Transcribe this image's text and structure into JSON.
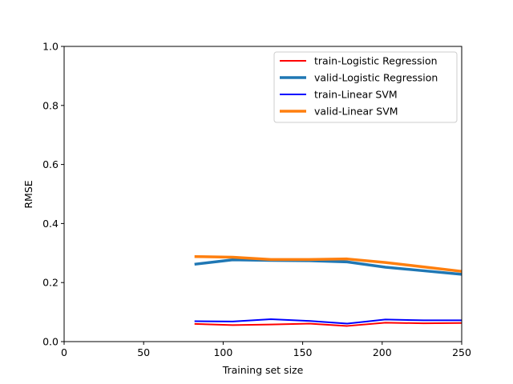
{
  "chart_data": {
    "type": "line",
    "title": "",
    "xlabel": "Training set size",
    "ylabel": "RMSE",
    "xlim": [
      0,
      250
    ],
    "ylim": [
      0,
      1.0
    ],
    "xticks": [
      0,
      50,
      100,
      150,
      200,
      250
    ],
    "yticks": [
      0.0,
      0.2,
      0.4,
      0.6,
      0.8,
      1.0
    ],
    "xtick_labels": [
      "0",
      "50",
      "100",
      "150",
      "200",
      "250"
    ],
    "ytick_labels": [
      "0.0",
      "0.2",
      "0.4",
      "0.6",
      "0.8",
      "1.0"
    ],
    "grid": false,
    "legend_position": "top-right",
    "x": [
      82,
      106,
      130,
      154,
      178,
      202,
      226,
      250
    ],
    "series": [
      {
        "name": "train-Logistic Regression",
        "color": "#ff0000",
        "width": "thin",
        "values": [
          0.06,
          0.056,
          0.058,
          0.061,
          0.053,
          0.064,
          0.062,
          0.063
        ]
      },
      {
        "name": "valid-Logistic Regression",
        "color": "#1f77b4",
        "width": "thick",
        "values": [
          0.262,
          0.277,
          0.275,
          0.274,
          0.27,
          0.252,
          0.24,
          0.228
        ]
      },
      {
        "name": "train-Linear SVM",
        "color": "#0000ff",
        "width": "thin",
        "values": [
          0.069,
          0.068,
          0.076,
          0.07,
          0.061,
          0.075,
          0.072,
          0.072
        ]
      },
      {
        "name": "valid-Linear SVM",
        "color": "#ff7f0e",
        "width": "thick",
        "values": [
          0.288,
          0.286,
          0.278,
          0.278,
          0.28,
          0.268,
          0.253,
          0.238
        ]
      }
    ]
  }
}
